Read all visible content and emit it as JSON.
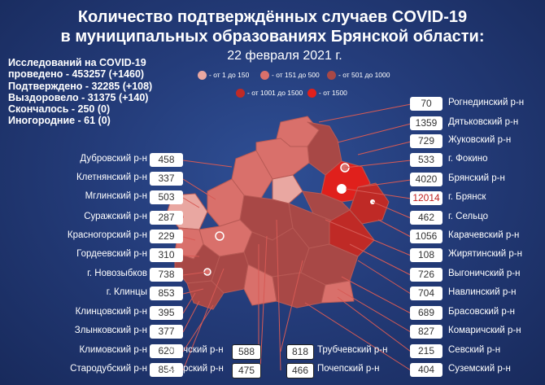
{
  "title": [
    "Количество подтверждённых случаев COVID-19",
    "в муниципальных образованиях Брянской области:"
  ],
  "date": "22 февраля 2021 г.",
  "stats": [
    "Исследований на COVID-19",
    "проведено - 453257 (+1460)",
    "Подтверждено - 32285 (+108)",
    "Выздоровело - 31375 (+140)",
    "Скончалось - 250 (0)",
    "Иногородние - 61 (0)"
  ],
  "legend": [
    {
      "label": "- от 1 до 150",
      "color": "#e9a7a1"
    },
    {
      "label": "- от 151 до 500",
      "color": "#d9706b"
    },
    {
      "label": "- от 501 до 1000",
      "color": "#a84846"
    },
    {
      "label": "- от 1001 до 1500",
      "color": "#bf2a26"
    },
    {
      "label": "- от 1500",
      "color": "#e0201c"
    }
  ],
  "left_regions": [
    {
      "name": "Дубровский р-н",
      "value": "458"
    },
    {
      "name": "Клетнянский р-н",
      "value": "337"
    },
    {
      "name": "Мглинский р-н",
      "value": "503"
    },
    {
      "name": "Суражский р-н",
      "value": "287"
    },
    {
      "name": "Красногорский р-н",
      "value": "229"
    },
    {
      "name": "Гордеевский р-н",
      "value": "310"
    },
    {
      "name": "г. Новозыбков",
      "value": "738"
    },
    {
      "name": "г. Клинцы",
      "value": "853"
    },
    {
      "name": "Клинцовский р-н",
      "value": "395"
    },
    {
      "name": "Злынковский р-н",
      "value": "377"
    },
    {
      "name": "Климовский р-н",
      "value": "620"
    },
    {
      "name": "Стародубский р-н",
      "value": "854"
    }
  ],
  "right_regions": [
    {
      "name": "Рогнединский р-н",
      "value": "70"
    },
    {
      "name": "Дятьковский р-н",
      "value": "1359"
    },
    {
      "name": "Жуковский р-н",
      "value": "729"
    },
    {
      "name": "г. Фокино",
      "value": "533"
    },
    {
      "name": "Брянский р-н",
      "value": "4020"
    },
    {
      "name": "г. Брянск",
      "value": "12014"
    },
    {
      "name": "г. Сельцо",
      "value": "462"
    },
    {
      "name": "Карачевский р-н",
      "value": "1056"
    },
    {
      "name": "Жирятинский р-н",
      "value": "108"
    },
    {
      "name": "Выгоничский р-н",
      "value": "726"
    },
    {
      "name": "Навлинский р-н",
      "value": "704"
    },
    {
      "name": "Брасовский р-н",
      "value": "689"
    },
    {
      "name": "Комаричский р-н",
      "value": "827"
    },
    {
      "name": "Севский р-н",
      "value": "215"
    },
    {
      "name": "Суземский р-н",
      "value": "404"
    }
  ],
  "bottom_regions": [
    {
      "name": "Унечский р-н",
      "value": "588"
    },
    {
      "name": "Погарский р-н",
      "value": "475"
    },
    {
      "name": "Трубчевский р-н",
      "value": "818"
    },
    {
      "name": "Почепский р-н",
      "value": "466"
    }
  ]
}
